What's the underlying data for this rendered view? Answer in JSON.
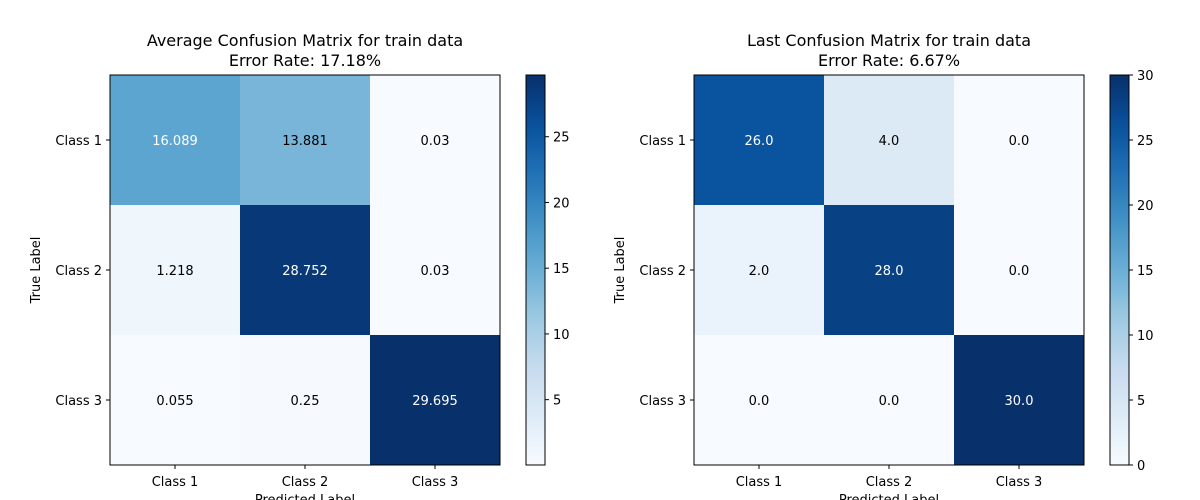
{
  "chart_data": [
    {
      "type": "heatmap",
      "title": "Average Confusion Matrix for train data",
      "subtitle": "Error Rate: 17.18%",
      "xlabel": "Predicted Label",
      "ylabel": "True Label",
      "x_categories": [
        "Class 1",
        "Class 2",
        "Class 3"
      ],
      "y_categories": [
        "Class 1",
        "Class 2",
        "Class 3"
      ],
      "values": [
        [
          16.089,
          13.881,
          0.03
        ],
        [
          1.218,
          28.752,
          0.03
        ],
        [
          0.055,
          0.25,
          29.695
        ]
      ],
      "value_labels": [
        [
          "16.089",
          "13.881",
          "0.03"
        ],
        [
          "1.218",
          "28.752",
          "0.03"
        ],
        [
          "0.055",
          "0.25",
          "29.695"
        ]
      ],
      "colormap": "Blues",
      "colorbar": {
        "vmin": 0.03,
        "vmax": 29.695,
        "ticks": [
          5,
          10,
          15,
          20,
          25
        ]
      }
    },
    {
      "type": "heatmap",
      "title": "Last Confusion Matrix for train data",
      "subtitle": "Error Rate: 6.67%",
      "xlabel": "Predicted Label",
      "ylabel": "True Label",
      "x_categories": [
        "Class 1",
        "Class 2",
        "Class 3"
      ],
      "y_categories": [
        "Class 1",
        "Class 2",
        "Class 3"
      ],
      "values": [
        [
          26.0,
          4.0,
          0.0
        ],
        [
          2.0,
          28.0,
          0.0
        ],
        [
          0.0,
          0.0,
          30.0
        ]
      ],
      "value_labels": [
        [
          "26.0",
          "4.0",
          "0.0"
        ],
        [
          "2.0",
          "28.0",
          "0.0"
        ],
        [
          "0.0",
          "0.0",
          "30.0"
        ]
      ],
      "colormap": "Blues",
      "colorbar": {
        "vmin": 0,
        "vmax": 30,
        "ticks": [
          0,
          5,
          10,
          15,
          20,
          25,
          30
        ]
      }
    }
  ]
}
